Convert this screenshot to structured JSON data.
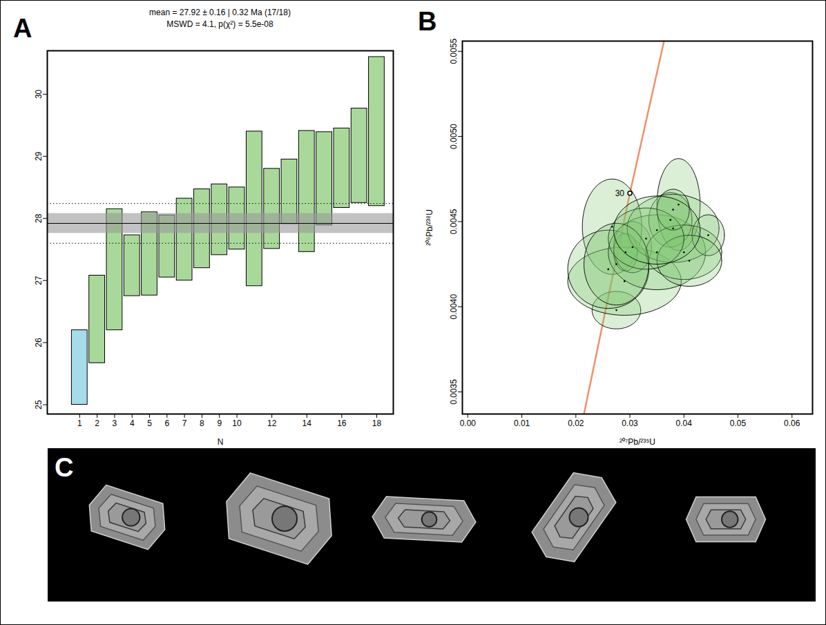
{
  "chart_data": [
    {
      "type": "range",
      "label": "A",
      "title": "mean = 27.92 ± 0.16 | 0.32 Ma (17/18)",
      "subtitle": "MSWD = 4.1, p(χ²) = 5.5e-08",
      "xlabel": "N",
      "x": [
        1,
        2,
        3,
        4,
        5,
        6,
        7,
        8,
        9,
        10,
        11,
        12,
        13,
        14,
        15,
        16,
        17,
        18
      ],
      "low": [
        25.0,
        25.67,
        26.2,
        26.75,
        26.76,
        27.05,
        27.0,
        27.2,
        27.41,
        27.5,
        26.91,
        27.51,
        27.91,
        27.46,
        27.89,
        28.17,
        28.25,
        28.2
      ],
      "high": [
        26.2,
        27.08,
        28.15,
        27.73,
        28.1,
        28.05,
        28.32,
        28.47,
        28.55,
        28.5,
        29.4,
        28.8,
        28.95,
        29.41,
        29.39,
        29.45,
        29.77,
        30.6
      ],
      "colors": [
        "#a6dcea",
        "#a9d99a",
        "#a9d99a",
        "#a9d99a",
        "#a9d99a",
        "#a9d99a",
        "#a9d99a",
        "#a9d99a",
        "#a9d99a",
        "#a9d99a",
        "#a9d99a",
        "#a9d99a",
        "#a9d99a",
        "#a9d99a",
        "#a9d99a",
        "#a9d99a",
        "#a9d99a",
        "#a9d99a"
      ],
      "mean": 27.92,
      "mean_band": [
        27.76,
        28.08
      ],
      "mean_dotted": [
        27.6,
        28.24
      ],
      "xlim": [
        -0.85,
        18.95
      ],
      "xticks": [
        1,
        2,
        3,
        4,
        5,
        6,
        7,
        8,
        9,
        10,
        12,
        14,
        16,
        18
      ],
      "ylim": [
        24.85,
        30.7
      ],
      "yticks": [
        25,
        26,
        27,
        28,
        29,
        30
      ]
    },
    {
      "type": "concordia",
      "label": "B",
      "xlabel": "²⁰⁷Pb/²³⁵U",
      "ylabel": "²⁰⁶Pb/²³⁸U",
      "color": "#7cc56f",
      "xlim": [
        -0.001,
        0.0638
      ],
      "ylim": [
        0.00337,
        0.00556
      ],
      "xticks": [
        {
          "value": 0,
          "label": "0.00"
        },
        {
          "value": 0.01,
          "label": "0.01"
        },
        {
          "value": 0.02,
          "label": "0.02"
        },
        {
          "value": 0.03,
          "label": "0.03"
        },
        {
          "value": 0.04,
          "label": "0.04"
        },
        {
          "value": 0.05,
          "label": "0.05"
        },
        {
          "value": 0.06,
          "label": "0.06"
        }
      ],
      "yticks": [
        0.0035,
        {
          "value": 0.004,
          "label": "0.0040"
        },
        0.0045,
        {
          "value": 0.005,
          "label": "0.0050"
        },
        0.0055
      ],
      "concordia": {
        "x": [
          0.0215,
          0.03,
          0.0366
        ],
        "y": [
          0.00337,
          0.004667,
          0.0056
        ],
        "color": "#f0906a"
      },
      "age_marks": [
        {
          "x": 0.03,
          "y": 0.004667,
          "label": "30"
        }
      ],
      "ellipses": [
        {
          "x": 0.0275,
          "y": 0.00398,
          "rx": 0.0045,
          "ry": 0.00011
        },
        {
          "x": 0.0267,
          "y": 0.00447,
          "rx": 0.0055,
          "ry": 0.00028
        },
        {
          "x": 0.029,
          "y": 0.00415,
          "rx": 0.0105,
          "ry": 0.0002
        },
        {
          "x": 0.026,
          "y": 0.00422,
          "rx": 0.0075,
          "ry": 0.00023
        },
        {
          "x": 0.0292,
          "y": 0.00432,
          "rx": 0.0022,
          "ry": 0.00011
        },
        {
          "x": 0.0305,
          "y": 0.00435,
          "rx": 0.0035,
          "ry": 0.00015
        },
        {
          "x": 0.035,
          "y": 0.00432,
          "rx": 0.009,
          "ry": 0.00022
        },
        {
          "x": 0.039,
          "y": 0.0046,
          "rx": 0.004,
          "ry": 0.00027
        },
        {
          "x": 0.0375,
          "y": 0.00451,
          "rx": 0.004,
          "ry": 0.00016
        },
        {
          "x": 0.038,
          "y": 0.00446,
          "rx": 0.0085,
          "ry": 0.0002
        },
        {
          "x": 0.04,
          "y": 0.00432,
          "rx": 0.007,
          "ry": 0.00016
        },
        {
          "x": 0.0445,
          "y": 0.00442,
          "rx": 0.003,
          "ry": 0.00012
        },
        {
          "x": 0.041,
          "y": 0.00427,
          "rx": 0.006,
          "ry": 0.00015
        },
        {
          "x": 0.033,
          "y": 0.0044,
          "rx": 0.007,
          "ry": 0.00018
        },
        {
          "x": 0.038,
          "y": 0.00457,
          "rx": 0.003,
          "ry": 0.00012
        },
        {
          "x": 0.0275,
          "y": 0.00425,
          "rx": 0.006,
          "ry": 0.00024
        },
        {
          "x": 0.035,
          "y": 0.00445,
          "rx": 0.008,
          "ry": 0.0002
        }
      ]
    }
  ],
  "image_panel": {
    "label": "C"
  }
}
